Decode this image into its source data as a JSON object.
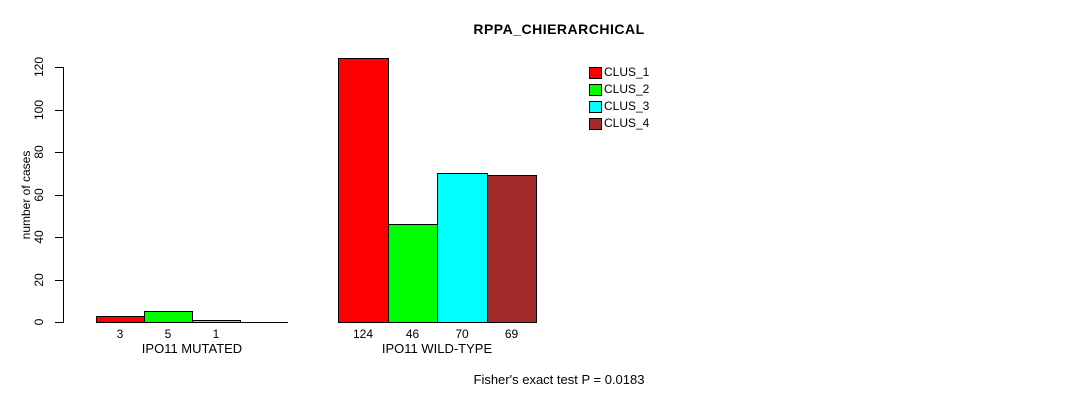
{
  "chart_data": {
    "type": "bar",
    "title": "RPPA_CHIERARCHICAL",
    "ylabel": "number of cases",
    "xlabel": "",
    "ylim": [
      0,
      120
    ],
    "yticks": [
      0,
      20,
      40,
      60,
      80,
      100,
      120
    ],
    "grid": false,
    "legend_position": "top-right-inside",
    "categories": [
      "IPO11 MUTATED",
      "IPO11 WILD-TYPE"
    ],
    "series": [
      {
        "name": "CLUS_1",
        "color": "#FF0000",
        "values": [
          3,
          124
        ]
      },
      {
        "name": "CLUS_2",
        "color": "#00FF00",
        "values": [
          5,
          46
        ]
      },
      {
        "name": "CLUS_3",
        "color": "#00FFFF",
        "values": [
          1,
          70
        ]
      },
      {
        "name": "CLUS_4",
        "color": "#A52A2A",
        "values": [
          0,
          69
        ]
      }
    ],
    "bar_value_labels": {
      "show": true,
      "hide_zero": true
    },
    "footnote": "Fisher's exact test P = 0.0183",
    "colors": {
      "axis": "#000000",
      "text": "#000000",
      "background": "#FFFFFF"
    }
  }
}
